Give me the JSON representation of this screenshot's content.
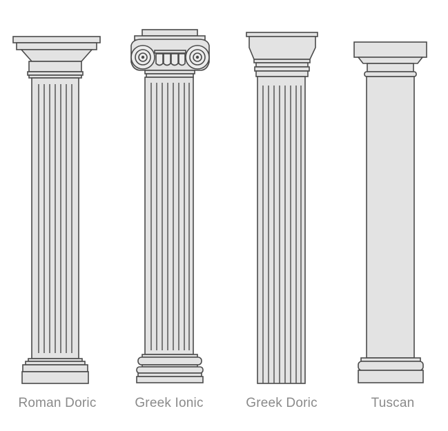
{
  "columns": [
    {
      "id": "roman-doric",
      "label": "Roman Doric"
    },
    {
      "id": "greek-ionic",
      "label": "Greek Ionic"
    },
    {
      "id": "greek-doric",
      "label": "Greek Doric"
    },
    {
      "id": "tuscan",
      "label": "Tuscan"
    }
  ],
  "colors": {
    "fill": "#e3e3e3",
    "fill_light": "#ececec",
    "stroke": "#4a4a4a",
    "label_text": "#8a8a8a",
    "background": "#ffffff"
  }
}
